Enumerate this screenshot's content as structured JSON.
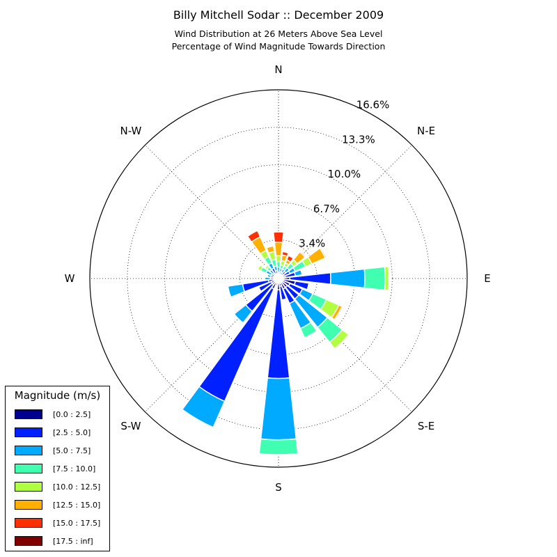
{
  "title": "Billy Mitchell Sodar :: December 2009",
  "subtitle_1": "Wind Distribution at 26 Meters Above Sea Level",
  "subtitle_2": "Percentage of Wind Magnitude Towards Direction",
  "legend": {
    "title": "Magnitude (m/s)",
    "items": [
      {
        "label": "[0.0 : 2.5]",
        "color": "#00008f"
      },
      {
        "label": "[2.5 : 5.0]",
        "color": "#0020ff"
      },
      {
        "label": "[5.0 : 7.5]",
        "color": "#00aaff"
      },
      {
        "label": "[7.5 : 10.0]",
        "color": "#40ffb0"
      },
      {
        "label": "[10.0 : 12.5]",
        "color": "#b0ff40"
      },
      {
        "label": "[12.5 : 15.0]",
        "color": "#ffb000"
      },
      {
        "label": "[15.0 : 17.5]",
        "color": "#ff3000"
      },
      {
        "label": "[17.5 : inf]",
        "color": "#800000"
      }
    ]
  },
  "chart_data": {
    "type": "polar-stacked-bar",
    "radial_ticks": [
      "3.4%",
      "6.7%",
      "10.0%",
      "13.3%",
      "16.6%"
    ],
    "radial_tick_values": [
      3.4,
      6.7,
      10.0,
      13.3,
      16.6
    ],
    "radial_max": 16.6,
    "direction_labels": [
      "N",
      "N-E",
      "E",
      "S-E",
      "S",
      "S-W",
      "W",
      "N-W"
    ],
    "bins": [
      "[0.0 : 2.5]",
      "[2.5 : 5.0]",
      "[5.0 : 7.5]",
      "[7.5 : 10.0]",
      "[10.0 : 12.5]",
      "[12.5 : 15.0]",
      "[15.0 : 17.5]",
      "[17.5 : inf]"
    ],
    "sectors": [
      {
        "direction_deg": 0,
        "values": [
          0.2,
          0.3,
          0.5,
          0.5,
          0.5,
          1.2,
          0.9,
          0
        ]
      },
      {
        "direction_deg": 15,
        "values": [
          0.3,
          0.3,
          0.3,
          0.3,
          0.4,
          0.5,
          0.3,
          0
        ]
      },
      {
        "direction_deg": 30,
        "values": [
          0.2,
          0.4,
          0.3,
          0.3,
          0.3,
          0.3,
          0.4,
          0
        ]
      },
      {
        "direction_deg": 45,
        "values": [
          0.3,
          0.5,
          0.4,
          0.5,
          0.4,
          0.9,
          0.1,
          0
        ]
      },
      {
        "direction_deg": 60,
        "values": [
          0.5,
          0.6,
          0.5,
          1.0,
          0.6,
          1.3,
          0,
          0.1
        ]
      },
      {
        "direction_deg": 75,
        "values": [
          0.6,
          0.9,
          0.6,
          0,
          0,
          0,
          0,
          0
        ]
      },
      {
        "direction_deg": 90,
        "values": [
          1.0,
          3.6,
          3.0,
          1.8,
          0.3,
          0.1,
          0.05,
          0.05
        ]
      },
      {
        "direction_deg": 105,
        "values": [
          1.5,
          1.2,
          0,
          0,
          0,
          0,
          0,
          0
        ]
      },
      {
        "direction_deg": 120,
        "values": [
          1.1,
          1.2,
          1.0,
          1.3,
          1.2,
          0.3,
          0.1,
          0
        ]
      },
      {
        "direction_deg": 135,
        "values": [
          1.0,
          1.3,
          3.2,
          1.7,
          0.7,
          0,
          0,
          0
        ]
      },
      {
        "direction_deg": 150,
        "values": [
          1.0,
          1.4,
          2.4,
          0.9,
          0,
          0,
          0,
          0
        ]
      },
      {
        "direction_deg": 165,
        "values": [
          0.7,
          1.2,
          0,
          0,
          0,
          0,
          0,
          0
        ]
      },
      {
        "direction_deg": 180,
        "values": [
          1.0,
          7.8,
          5.4,
          1.3,
          0,
          0,
          0,
          0
        ]
      },
      {
        "direction_deg": 195,
        "values": [
          0.6,
          0,
          0,
          0,
          0,
          0,
          0,
          0
        ]
      },
      {
        "direction_deg": 210,
        "values": [
          1.0,
          10.8,
          2.5,
          0,
          0,
          0,
          0,
          0
        ]
      },
      {
        "direction_deg": 225,
        "values": [
          0.7,
          3.0,
          1.3,
          0,
          0,
          0,
          0,
          0
        ]
      },
      {
        "direction_deg": 240,
        "values": [
          0.7,
          1.2,
          0,
          0,
          0,
          0,
          0,
          0
        ]
      },
      {
        "direction_deg": 255,
        "values": [
          0.9,
          2.3,
          1.3,
          0,
          0,
          0,
          0,
          0
        ]
      },
      {
        "direction_deg": 270,
        "values": [
          0.4,
          0.3,
          0.5,
          0.1,
          0.1,
          0,
          0,
          0
        ]
      },
      {
        "direction_deg": 285,
        "values": [
          0.4,
          0.3,
          0.3,
          0,
          0,
          0,
          0,
          0
        ]
      },
      {
        "direction_deg": 300,
        "values": [
          0.4,
          0.3,
          0.5,
          0.5,
          0.3,
          0.1,
          0,
          0
        ]
      },
      {
        "direction_deg": 315,
        "values": [
          0.3,
          0.3,
          0.4,
          0.3,
          0.2,
          0,
          0,
          0
        ]
      },
      {
        "direction_deg": 330,
        "values": [
          0.5,
          0.5,
          0.5,
          0.6,
          0.6,
          1.3,
          0.6,
          0
        ]
      },
      {
        "direction_deg": 345,
        "values": [
          0.3,
          0.4,
          0.4,
          0.6,
          0.7,
          0.5,
          0,
          0
        ]
      }
    ]
  }
}
